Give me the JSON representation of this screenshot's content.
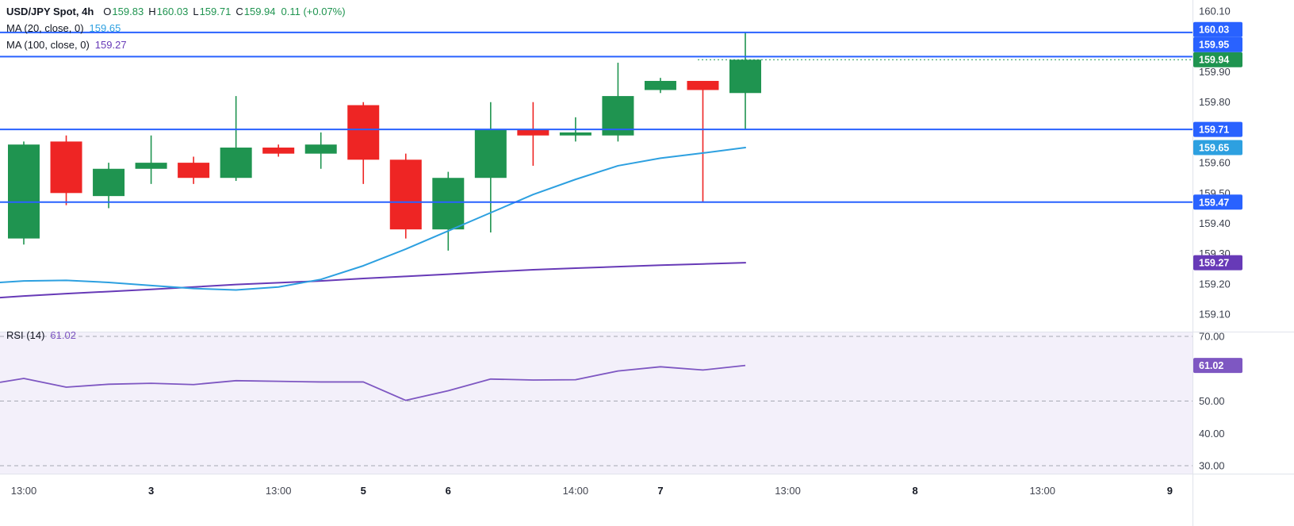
{
  "colors": {
    "up": "#1f9450",
    "down": "#ee2524",
    "line_blue": "#2962ff",
    "ma20": "#2da0e0",
    "ma100": "#673ab7",
    "rsi": "#7e57c2",
    "text": "#131722",
    "axis_text": "#3a3f4c",
    "grid": "#a6a9b3",
    "rsi_bg": "#f3f0fa",
    "sep": "#e0e3eb",
    "badge_text": "#ffffff"
  },
  "legend": {
    "title": "USD/JPY Spot, 4h",
    "o_label": "O",
    "o_value": "159.83",
    "h_label": "H",
    "h_value": "160.03",
    "l_label": "L",
    "l_value": "159.71",
    "c_label": "C",
    "c_value": "159.94",
    "change": "0.11 (+0.07%)",
    "ma20_label": "MA (20, close, 0)",
    "ma20_value": "159.65",
    "ma100_label": "MA (100, close, 0)",
    "ma100_value": "159.27",
    "rsi_label": "RSI (14)",
    "rsi_value": "61.02"
  },
  "chart_data": [
    {
      "type": "candlestick",
      "symbol": "USD/JPY Spot",
      "timeframe": "4h",
      "ylim": [
        159.06,
        160.14
      ],
      "grid": "off",
      "y_ticks": [
        "160.10",
        "159.90",
        "159.80",
        "159.60",
        "159.50",
        "159.40",
        "159.30",
        "159.20",
        "159.10"
      ],
      "candles": [
        [
          159.35,
          159.67,
          159.33,
          159.66
        ],
        [
          159.67,
          159.69,
          159.46,
          159.5
        ],
        [
          159.49,
          159.6,
          159.45,
          159.58
        ],
        [
          159.58,
          159.69,
          159.53,
          159.6
        ],
        [
          159.6,
          159.62,
          159.53,
          159.55
        ],
        [
          159.55,
          159.82,
          159.54,
          159.65
        ],
        [
          159.65,
          159.66,
          159.62,
          159.63
        ],
        [
          159.63,
          159.7,
          159.58,
          159.66
        ],
        [
          159.79,
          159.8,
          159.53,
          159.61
        ],
        [
          159.61,
          159.63,
          159.35,
          159.38
        ],
        [
          159.38,
          159.57,
          159.31,
          159.55
        ],
        [
          159.55,
          159.8,
          159.37,
          159.71
        ],
        [
          159.71,
          159.8,
          159.59,
          159.69
        ],
        [
          159.69,
          159.75,
          159.67,
          159.7
        ],
        [
          159.69,
          159.93,
          159.67,
          159.82
        ],
        [
          159.84,
          159.88,
          159.83,
          159.87
        ],
        [
          159.87,
          159.87,
          159.47,
          159.84
        ],
        [
          159.83,
          160.03,
          159.71,
          159.94
        ]
      ],
      "ma20_points": [
        [
          -0.56,
          159.205
        ],
        [
          0,
          159.21
        ],
        [
          1,
          159.212
        ],
        [
          2,
          159.205
        ],
        [
          3,
          159.195
        ],
        [
          4,
          159.185
        ],
        [
          5,
          159.18
        ],
        [
          6,
          159.19
        ],
        [
          7,
          159.215
        ],
        [
          8,
          159.26
        ],
        [
          9,
          159.315
        ],
        [
          10,
          159.375
        ],
        [
          11,
          159.435
        ],
        [
          12,
          159.495
        ],
        [
          13,
          159.545
        ],
        [
          14,
          159.59
        ],
        [
          15,
          159.615
        ],
        [
          16,
          159.632
        ],
        [
          17,
          159.65
        ]
      ],
      "ma100_points": [
        [
          -0.56,
          159.155
        ],
        [
          0,
          159.16
        ],
        [
          1,
          159.168
        ],
        [
          2,
          159.175
        ],
        [
          3,
          159.182
        ],
        [
          4,
          159.19
        ],
        [
          5,
          159.198
        ],
        [
          6,
          159.204
        ],
        [
          7,
          159.21
        ],
        [
          8,
          159.218
        ],
        [
          9,
          159.225
        ],
        [
          10,
          159.232
        ],
        [
          11,
          159.24
        ],
        [
          12,
          159.247
        ],
        [
          13,
          159.252
        ],
        [
          14,
          159.257
        ],
        [
          15,
          159.262
        ],
        [
          16,
          159.266
        ],
        [
          17,
          159.27
        ]
      ],
      "h_lines": [
        160.03,
        159.95,
        159.71,
        159.47
      ],
      "last_price": 159.94,
      "axis_badges": [
        {
          "label": "160.03",
          "price": 160.03,
          "type": "hline"
        },
        {
          "label": "159.95",
          "price": 159.95,
          "type": "hline"
        },
        {
          "label": "159.94",
          "price": 159.94,
          "type": "last"
        },
        {
          "label": "159.71",
          "price": 159.71,
          "type": "hline"
        },
        {
          "label": "159.65",
          "price": 159.65,
          "type": "ma20"
        },
        {
          "label": "159.47",
          "price": 159.47,
          "type": "hline"
        },
        {
          "label": "159.27",
          "price": 159.27,
          "type": "ma100"
        }
      ],
      "x_labels": [
        {
          "i": 0,
          "t": "13:00",
          "b": 0
        },
        {
          "i": 3,
          "t": "3",
          "b": 1
        },
        {
          "i": 6,
          "t": "13:00",
          "b": 0
        },
        {
          "i": 8,
          "t": "5",
          "b": 1
        },
        {
          "i": 10,
          "t": "6",
          "b": 1
        },
        {
          "i": 13,
          "t": "14:00",
          "b": 0
        },
        {
          "i": 15,
          "t": "7",
          "b": 1
        },
        {
          "i": 18,
          "t": "13:00",
          "b": 0
        },
        {
          "i": 21,
          "t": "8",
          "b": 1
        },
        {
          "i": 24,
          "t": "13:00",
          "b": 0
        },
        {
          "i": 27,
          "t": "9",
          "b": 1
        }
      ]
    },
    {
      "type": "line",
      "name": "RSI (14)",
      "ylim": [
        28,
        72
      ],
      "y_ticks": [
        "70.00",
        "50.00",
        "40.00",
        "30.00"
      ],
      "dashed_levels": [
        70,
        50,
        30
      ],
      "points": [
        [
          -0.56,
          55.8
        ],
        [
          0,
          57.0
        ],
        [
          1,
          54.3
        ],
        [
          2,
          55.2
        ],
        [
          3,
          55.5
        ],
        [
          4,
          55.1
        ],
        [
          5,
          56.3
        ],
        [
          6,
          56.1
        ],
        [
          7,
          55.9
        ],
        [
          8,
          55.9
        ],
        [
          9,
          50.2
        ],
        [
          10,
          53.2
        ],
        [
          11,
          56.8
        ],
        [
          12,
          56.5
        ],
        [
          13,
          56.6
        ],
        [
          14,
          59.3
        ],
        [
          15,
          60.6
        ],
        [
          16,
          59.6
        ],
        [
          17,
          61.02
        ]
      ],
      "current_value": 61.02,
      "current_label": "61.02"
    }
  ]
}
